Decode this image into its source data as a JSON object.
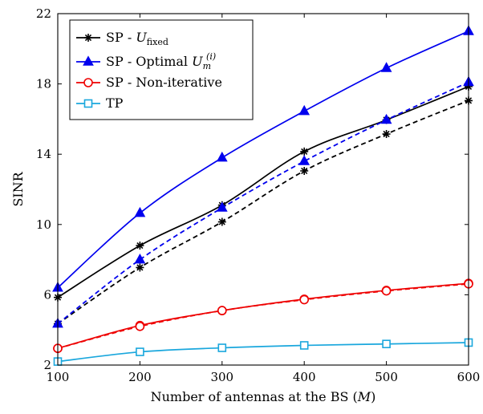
{
  "chart_data": {
    "type": "line",
    "xlabel": "Number of antennas at the BS (M)",
    "ylabel": "SINR",
    "xlim": [
      100,
      600
    ],
    "ylim": [
      2,
      22
    ],
    "x_ticks": [
      100,
      200,
      300,
      400,
      500,
      600
    ],
    "y_ticks": [
      2,
      6,
      10,
      14,
      18,
      22
    ],
    "grid": false,
    "legend_position": "top-left",
    "x": [
      100,
      200,
      300,
      400,
      500,
      600
    ],
    "series": [
      {
        "name": "SP - U_fixed",
        "color": "#000000",
        "marker": "star",
        "dash": "solid",
        "values": [
          5.85,
          8.8,
          11.1,
          14.15,
          15.95,
          17.85
        ]
      },
      {
        "name": "SP - U_fixed",
        "color": "#000000",
        "marker": "star",
        "dash": "dashed",
        "values": [
          4.35,
          7.55,
          10.15,
          13.05,
          15.15,
          17.05
        ]
      },
      {
        "name": "SP - Optimal U_m^(i)",
        "color": "#0000ee",
        "marker": "triangle",
        "dash": "solid",
        "values": [
          6.4,
          10.65,
          13.8,
          16.45,
          18.9,
          21.0
        ]
      },
      {
        "name": "SP - Optimal U_m^(i)",
        "color": "#0000ee",
        "marker": "triangle",
        "dash": "dashed",
        "values": [
          4.35,
          8.0,
          10.95,
          13.6,
          15.95,
          18.1
        ]
      },
      {
        "name": "SP - Non-iterative",
        "color": "#ee0000",
        "marker": "circle",
        "dash": "solid",
        "values": [
          2.95,
          4.25,
          5.1,
          5.75,
          6.25,
          6.65
        ]
      },
      {
        "name": "SP - Non-iterative",
        "color": "#ee0000",
        "marker": "circle",
        "dash": "dashed",
        "values": [
          2.95,
          4.2,
          5.1,
          5.72,
          6.22,
          6.62
        ]
      },
      {
        "name": "TP",
        "color": "#1aa7dd",
        "marker": "square",
        "dash": "solid",
        "values": [
          2.2,
          2.75,
          2.98,
          3.12,
          3.2,
          3.28
        ]
      }
    ],
    "legend": [
      {
        "label": "SP - ",
        "math": "U",
        "sub": "fixed",
        "sup": "",
        "color": "#000000",
        "marker": "star"
      },
      {
        "label": "SP - Optimal ",
        "math": "U",
        "sub": "m",
        "sup": "(i)",
        "color": "#0000ee",
        "marker": "triangle"
      },
      {
        "label": "SP - Non-iterative",
        "math": "",
        "sub": "",
        "sup": "",
        "color": "#ee0000",
        "marker": "circle"
      },
      {
        "label": "TP",
        "math": "",
        "sub": "",
        "sup": "",
        "color": "#1aa7dd",
        "marker": "square"
      }
    ]
  }
}
